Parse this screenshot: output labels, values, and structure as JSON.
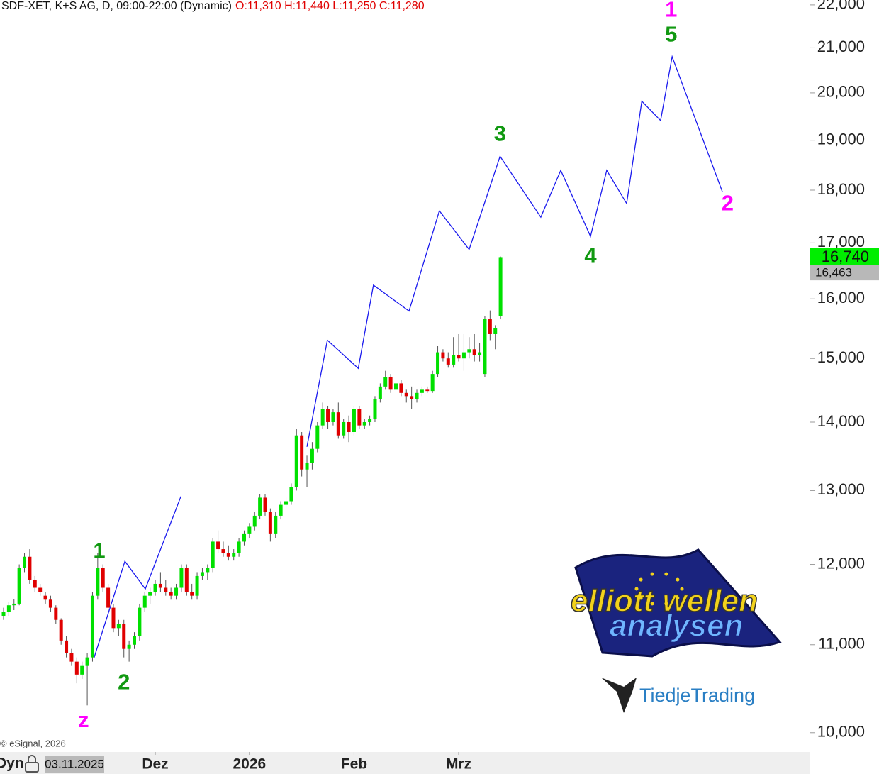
{
  "chart_data": {
    "type": "candlestick",
    "title": "SDF-XET, K+S AG, D, 09:00-22:00 (Dynamic)",
    "ohlc_text": "O:11,310 H:11,440 L:11,250 C:11,280",
    "log_scale": true,
    "up_color": "#00e000",
    "down_color": "#e00000",
    "ylim": [
      9793,
      22117
    ],
    "yticks": [
      {
        "value": 10000,
        "label": "10,000"
      },
      {
        "value": 11000,
        "label": "11,000"
      },
      {
        "value": 12000,
        "label": "12,000"
      },
      {
        "value": 13000,
        "label": "13,000"
      },
      {
        "value": 14000,
        "label": "14,000"
      },
      {
        "value": 15000,
        "label": "15,000"
      },
      {
        "value": 16000,
        "label": "16,000"
      },
      {
        "value": 17000,
        "label": "17,000"
      },
      {
        "value": 18000,
        "label": "18,000"
      },
      {
        "value": 19000,
        "label": "19,000"
      },
      {
        "value": 20000,
        "label": "20,000"
      },
      {
        "value": 21000,
        "label": "21,000"
      },
      {
        "value": 22000,
        "label": "22,000"
      }
    ],
    "xticks": [
      {
        "value": 29,
        "label": "Dez"
      },
      {
        "value": 47,
        "label": "2026"
      },
      {
        "value": 67,
        "label": "Feb"
      },
      {
        "value": 87,
        "label": "Mrz"
      }
    ],
    "cursor_label": "Dyn",
    "cursor_date": "03.11.2025",
    "copyright": "© eSignal, 2026",
    "last_price": {
      "value": 16740,
      "label": "16,740",
      "color": "#00ee00"
    },
    "prev_price": {
      "value": 16463,
      "label": "16,463",
      "color": "#b8b8b8"
    },
    "candles": [
      {
        "o": 11350,
        "h": 11450,
        "l": 11300,
        "c": 11400
      },
      {
        "o": 11400,
        "h": 11520,
        "l": 11350,
        "c": 11480
      },
      {
        "o": 11480,
        "h": 11560,
        "l": 11420,
        "c": 11500
      },
      {
        "o": 11500,
        "h": 12000,
        "l": 11480,
        "c": 11950
      },
      {
        "o": 11950,
        "h": 12150,
        "l": 11900,
        "c": 12100
      },
      {
        "o": 12100,
        "h": 12200,
        "l": 11750,
        "c": 11800
      },
      {
        "o": 11800,
        "h": 11850,
        "l": 11650,
        "c": 11700
      },
      {
        "o": 11700,
        "h": 11750,
        "l": 11600,
        "c": 11650
      },
      {
        "o": 11600,
        "h": 11650,
        "l": 11500,
        "c": 11550
      },
      {
        "o": 11550,
        "h": 11600,
        "l": 11400,
        "c": 11450
      },
      {
        "o": 11450,
        "h": 11480,
        "l": 11250,
        "c": 11300
      },
      {
        "o": 11300,
        "h": 11320,
        "l": 11000,
        "c": 11050
      },
      {
        "o": 11050,
        "h": 11100,
        "l": 10850,
        "c": 10900
      },
      {
        "o": 10900,
        "h": 10950,
        "l": 10750,
        "c": 10800
      },
      {
        "o": 10800,
        "h": 10850,
        "l": 10550,
        "c": 10650
      },
      {
        "o": 10650,
        "h": 10800,
        "l": 10600,
        "c": 10750
      },
      {
        "o": 10750,
        "h": 10900,
        "l": 10300,
        "c": 10850
      },
      {
        "o": 10850,
        "h": 11650,
        "l": 10800,
        "c": 11600
      },
      {
        "o": 11600,
        "h": 12150,
        "l": 11550,
        "c": 11950
      },
      {
        "o": 11950,
        "h": 12000,
        "l": 11650,
        "c": 11700
      },
      {
        "o": 11700,
        "h": 11750,
        "l": 11400,
        "c": 11450
      },
      {
        "o": 11450,
        "h": 11500,
        "l": 11150,
        "c": 11200
      },
      {
        "o": 11200,
        "h": 11300,
        "l": 11100,
        "c": 11250
      },
      {
        "o": 11250,
        "h": 11300,
        "l": 10850,
        "c": 10950
      },
      {
        "o": 10950,
        "h": 11050,
        "l": 10800,
        "c": 11000
      },
      {
        "o": 11000,
        "h": 11150,
        "l": 10950,
        "c": 11100
      },
      {
        "o": 11100,
        "h": 11500,
        "l": 11050,
        "c": 11450
      },
      {
        "o": 11450,
        "h": 11650,
        "l": 11400,
        "c": 11600
      },
      {
        "o": 11600,
        "h": 11700,
        "l": 11500,
        "c": 11650
      },
      {
        "o": 11650,
        "h": 11800,
        "l": 11600,
        "c": 11750
      },
      {
        "o": 11750,
        "h": 11900,
        "l": 11650,
        "c": 11700
      },
      {
        "o": 11700,
        "h": 11800,
        "l": 11600,
        "c": 11650
      },
      {
        "o": 11650,
        "h": 11700,
        "l": 11550,
        "c": 11600
      },
      {
        "o": 11600,
        "h": 11750,
        "l": 11550,
        "c": 11700
      },
      {
        "o": 11700,
        "h": 12000,
        "l": 11650,
        "c": 11950
      },
      {
        "o": 11950,
        "h": 12000,
        "l": 11600,
        "c": 11650
      },
      {
        "o": 11650,
        "h": 11750,
        "l": 11550,
        "c": 11600
      },
      {
        "o": 11600,
        "h": 11900,
        "l": 11550,
        "c": 11850
      },
      {
        "o": 11850,
        "h": 11950,
        "l": 11800,
        "c": 11900
      },
      {
        "o": 11900,
        "h": 12000,
        "l": 11800,
        "c": 11950
      },
      {
        "o": 11950,
        "h": 12350,
        "l": 11900,
        "c": 12300
      },
      {
        "o": 12300,
        "h": 12450,
        "l": 12150,
        "c": 12200
      },
      {
        "o": 12200,
        "h": 12300,
        "l": 12100,
        "c": 12150
      },
      {
        "o": 12150,
        "h": 12250,
        "l": 12050,
        "c": 12100
      },
      {
        "o": 12100,
        "h": 12200,
        "l": 12050,
        "c": 12150
      },
      {
        "o": 12150,
        "h": 12350,
        "l": 12100,
        "c": 12300
      },
      {
        "o": 12300,
        "h": 12450,
        "l": 12250,
        "c": 12400
      },
      {
        "o": 12400,
        "h": 12550,
        "l": 12350,
        "c": 12500
      },
      {
        "o": 12500,
        "h": 12700,
        "l": 12450,
        "c": 12650
      },
      {
        "o": 12650,
        "h": 12950,
        "l": 12600,
        "c": 12900
      },
      {
        "o": 12900,
        "h": 12950,
        "l": 12650,
        "c": 12700
      },
      {
        "o": 12700,
        "h": 12750,
        "l": 12300,
        "c": 12400
      },
      {
        "o": 12400,
        "h": 12700,
        "l": 12350,
        "c": 12650
      },
      {
        "o": 12650,
        "h": 12850,
        "l": 12600,
        "c": 12800
      },
      {
        "o": 12800,
        "h": 12900,
        "l": 12750,
        "c": 12850
      },
      {
        "o": 12850,
        "h": 13100,
        "l": 12800,
        "c": 13050
      },
      {
        "o": 13050,
        "h": 13900,
        "l": 13000,
        "c": 13800
      },
      {
        "o": 13800,
        "h": 13850,
        "l": 13200,
        "c": 13300
      },
      {
        "o": 13300,
        "h": 13500,
        "l": 13050,
        "c": 13400
      },
      {
        "o": 13400,
        "h": 13700,
        "l": 13300,
        "c": 13600
      },
      {
        "o": 13600,
        "h": 14000,
        "l": 13550,
        "c": 13950
      },
      {
        "o": 13950,
        "h": 14300,
        "l": 13900,
        "c": 14200
      },
      {
        "o": 14200,
        "h": 14250,
        "l": 13900,
        "c": 14000
      },
      {
        "o": 14000,
        "h": 14200,
        "l": 13950,
        "c": 14150
      },
      {
        "o": 14150,
        "h": 14300,
        "l": 13750,
        "c": 13800
      },
      {
        "o": 13800,
        "h": 14050,
        "l": 13750,
        "c": 14000
      },
      {
        "o": 14000,
        "h": 14100,
        "l": 13700,
        "c": 13850
      },
      {
        "o": 13850,
        "h": 14250,
        "l": 13800,
        "c": 14200
      },
      {
        "o": 14200,
        "h": 14250,
        "l": 13900,
        "c": 13950
      },
      {
        "o": 13950,
        "h": 14050,
        "l": 13900,
        "c": 14000
      },
      {
        "o": 14000,
        "h": 14100,
        "l": 13950,
        "c": 14050
      },
      {
        "o": 14050,
        "h": 14400,
        "l": 14000,
        "c": 14350
      },
      {
        "o": 14350,
        "h": 14600,
        "l": 14300,
        "c": 14550
      },
      {
        "o": 14550,
        "h": 14800,
        "l": 14500,
        "c": 14700
      },
      {
        "o": 14700,
        "h": 14750,
        "l": 14450,
        "c": 14500
      },
      {
        "o": 14500,
        "h": 14650,
        "l": 14300,
        "c": 14600
      },
      {
        "o": 14600,
        "h": 14650,
        "l": 14400,
        "c": 14450
      },
      {
        "o": 14450,
        "h": 14500,
        "l": 14300,
        "c": 14400
      },
      {
        "o": 14400,
        "h": 14550,
        "l": 14200,
        "c": 14350
      },
      {
        "o": 14350,
        "h": 14500,
        "l": 14300,
        "c": 14450
      },
      {
        "o": 14450,
        "h": 14550,
        "l": 14400,
        "c": 14500
      },
      {
        "o": 14500,
        "h": 14550,
        "l": 14450,
        "c": 14480
      },
      {
        "o": 14480,
        "h": 14800,
        "l": 14450,
        "c": 14750
      },
      {
        "o": 14750,
        "h": 15200,
        "l": 14700,
        "c": 15100
      },
      {
        "o": 15100,
        "h": 15150,
        "l": 14950,
        "c": 15000
      },
      {
        "o": 15000,
        "h": 15100,
        "l": 14850,
        "c": 14900
      },
      {
        "o": 14900,
        "h": 15350,
        "l": 14850,
        "c": 15050
      },
      {
        "o": 15050,
        "h": 15400,
        "l": 14950,
        "c": 15000
      },
      {
        "o": 15000,
        "h": 15400,
        "l": 14800,
        "c": 15100
      },
      {
        "o": 15100,
        "h": 15350,
        "l": 15000,
        "c": 15150
      },
      {
        "o": 15150,
        "h": 15400,
        "l": 14950,
        "c": 15050
      },
      {
        "o": 15050,
        "h": 15250,
        "l": 14950,
        "c": 15100
      },
      {
        "o": 14750,
        "h": 15700,
        "l": 14700,
        "c": 15650
      },
      {
        "o": 15650,
        "h": 15800,
        "l": 15300,
        "c": 15400
      },
      {
        "o": 15400,
        "h": 15550,
        "l": 15150,
        "c": 15500
      },
      {
        "o": 15700,
        "h": 16750,
        "l": 15650,
        "c": 16740
      }
    ],
    "projection": {
      "color": "#1a1aee",
      "x": [
        17.3,
        23.2,
        27.1,
        33.9,
        null,
        58.0,
        61.9,
        67.8,
        70.7,
        77.5,
        83.3,
        89.0,
        94.9,
        102.7,
        106.5,
        112.2,
        115.3,
        119.1,
        122.0,
        125.6,
        127.8,
        137.4
      ],
      "values": [
        10846,
        12040,
        11686,
        12917,
        null,
        13630,
        15300,
        14840,
        16240,
        15790,
        17600,
        16880,
        18670,
        17480,
        18390,
        17120,
        18390,
        17740,
        19820,
        19410,
        20800,
        17970
      ]
    },
    "annotations": [
      {
        "text": "1",
        "x": 18.3,
        "y": 12160,
        "color": "#119911"
      },
      {
        "text": "z",
        "x": 15.3,
        "y": 10123,
        "color": "#ff00ff"
      },
      {
        "text": "2",
        "x": 23.0,
        "y": 10550,
        "color": "#119911"
      },
      {
        "text": "3",
        "x": 94.9,
        "y": 19110,
        "color": "#119911"
      },
      {
        "text": "4",
        "x": 112.2,
        "y": 16740,
        "color": "#119911"
      },
      {
        "text": "5",
        "x": 127.6,
        "y": 21280,
        "color": "#119911"
      },
      {
        "text": "1",
        "x": 127.6,
        "y": 21860,
        "color": "#ff00ff"
      },
      {
        "text": "2",
        "x": 138.4,
        "y": 17720,
        "color": "#ff00ff"
      }
    ]
  },
  "logos": {
    "ewa_line1": "elliott wellen",
    "ewa_line2": "analysen",
    "tiedje": "TiedjeTrading"
  }
}
